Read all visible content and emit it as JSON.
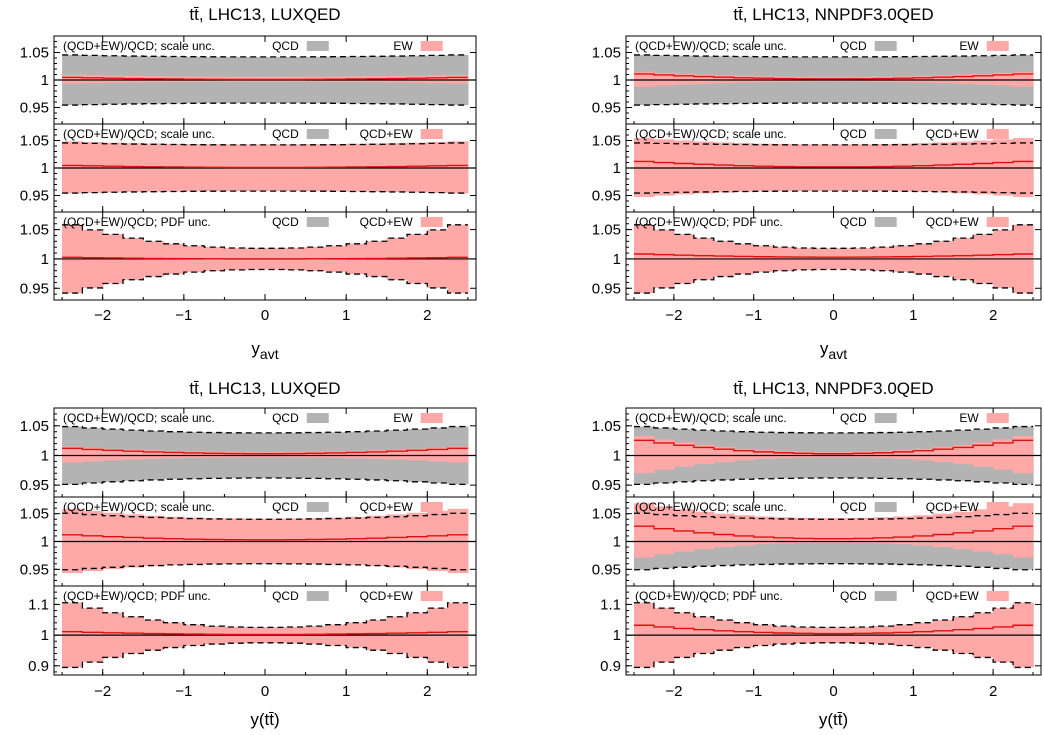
{
  "colors": {
    "qcd_band": "#b3b3b3",
    "ew_band": "#ffa8a8",
    "ew_line": "#e01010",
    "frame": "#000000"
  },
  "chart_data": [
    {
      "type": "area",
      "title": "tt̄, LHC13, LUXQED",
      "xlabel_main": "y",
      "xlabel_sub": "avt",
      "xlim": [
        -2.6,
        2.6
      ],
      "xticks": [
        "−2",
        "−1",
        "0",
        "1",
        "2"
      ],
      "xtick_values": [
        -2,
        -1,
        0,
        1,
        2
      ],
      "bins": [
        -2.5,
        -2.25,
        -2.0,
        -1.75,
        -1.5,
        -1.25,
        -1.0,
        -0.75,
        -0.5,
        -0.25,
        0.0,
        0.25,
        0.5,
        0.75,
        1.0,
        1.25,
        1.5,
        1.75,
        2.0,
        2.25,
        2.5
      ],
      "panels": [
        {
          "legend_text": "(QCD+EW)/QCD; scale unc.",
          "legend_a": "QCD",
          "legend_b": "EW",
          "ylim": [
            0.92,
            1.08
          ],
          "yticks": [
            "1.05",
            "1",
            "0.95"
          ],
          "ytick_values": [
            1.05,
            1,
            0.95
          ],
          "bands": [
            {
              "name": "QCD",
              "color": "qcd",
              "upper": 1.042,
              "lower": 0.958,
              "edge": 0.004
            },
            {
              "name": "EW",
              "color": "ew",
              "upper": 1.006,
              "lower": 0.997,
              "edge": 0.004
            }
          ],
          "line": {
            "center": 1.001,
            "edge": 0.004
          }
        },
        {
          "legend_text": "(QCD+EW)/QCD; scale unc.",
          "legend_a": "QCD",
          "legend_b": "QCD+EW",
          "ylim": [
            0.92,
            1.08
          ],
          "yticks": [
            "1.05",
            "1",
            "0.95"
          ],
          "ytick_values": [
            1.05,
            1,
            0.95
          ],
          "bands": [
            {
              "name": "QCD",
              "color": "qcd",
              "upper": 1.042,
              "lower": 0.958,
              "edge": 0.004
            },
            {
              "name": "QCD+EW",
              "color": "ew",
              "upper": 1.043,
              "lower": 0.959,
              "edge": 0.006
            }
          ],
          "line": {
            "center": 1.001,
            "edge": 0.004
          }
        },
        {
          "legend_text": "(QCD+EW)/QCD; PDF unc.",
          "legend_a": "QCD",
          "legend_b": "QCD+EW",
          "ylim": [
            0.93,
            1.08
          ],
          "yticks": [
            "1.05",
            "1",
            "0.95"
          ],
          "ytick_values": [
            1.05,
            1,
            0.95
          ],
          "bands": [
            {
              "name": "QCD",
              "color": "qcd",
              "upper": 1.018,
              "lower": 0.982,
              "edge": 0.045
            },
            {
              "name": "QCD+EW",
              "color": "ew",
              "upper": 1.018,
              "lower": 0.982,
              "edge": 0.045
            }
          ],
          "line": {
            "center": 1.0,
            "edge": 0.003
          }
        }
      ]
    },
    {
      "type": "area",
      "title": "tt̄, LHC13, NNPDF3.0QED",
      "xlabel_main": "y",
      "xlabel_sub": "avt",
      "xlim": [
        -2.6,
        2.6
      ],
      "xticks": [
        "−2",
        "−1",
        "0",
        "1",
        "2"
      ],
      "xtick_values": [
        -2,
        -1,
        0,
        1,
        2
      ],
      "bins": [
        -2.5,
        -2.25,
        -2.0,
        -1.75,
        -1.5,
        -1.25,
        -1.0,
        -0.75,
        -0.5,
        -0.25,
        0.0,
        0.25,
        0.5,
        0.75,
        1.0,
        1.25,
        1.5,
        1.75,
        2.0,
        2.25,
        2.5
      ],
      "panels": [
        {
          "legend_text": "(QCD+EW)/QCD; scale unc.",
          "legend_a": "QCD",
          "legend_b": "EW",
          "ylim": [
            0.92,
            1.08
          ],
          "yticks": [
            "1.05",
            "1",
            "0.95"
          ],
          "ytick_values": [
            1.05,
            1,
            0.95
          ],
          "bands": [
            {
              "name": "QCD",
              "color": "qcd",
              "upper": 1.042,
              "lower": 0.958,
              "edge": 0.004
            },
            {
              "name": "EW",
              "color": "ew",
              "upper": 1.006,
              "lower": 0.997,
              "edge": 0.01
            }
          ],
          "line": {
            "center": 1.002,
            "edge": 0.01
          }
        },
        {
          "legend_text": "(QCD+EW)/QCD; scale unc.",
          "legend_a": "QCD",
          "legend_b": "QCD+EW",
          "ylim": [
            0.92,
            1.08
          ],
          "yticks": [
            "1.05",
            "1",
            "0.95"
          ],
          "ytick_values": [
            1.05,
            1,
            0.95
          ],
          "bands": [
            {
              "name": "QCD",
              "color": "qcd",
              "upper": 1.042,
              "lower": 0.958,
              "edge": 0.004
            },
            {
              "name": "QCD+EW",
              "color": "ew",
              "upper": 1.043,
              "lower": 0.959,
              "edge": 0.013
            }
          ],
          "line": {
            "center": 1.002,
            "edge": 0.011
          }
        },
        {
          "legend_text": "(QCD+EW)/QCD; PDF unc.",
          "legend_a": "QCD",
          "legend_b": "QCD+EW",
          "ylim": [
            0.93,
            1.08
          ],
          "yticks": [
            "1.05",
            "1",
            "0.95"
          ],
          "ytick_values": [
            1.05,
            1,
            0.95
          ],
          "bands": [
            {
              "name": "QCD",
              "color": "qcd",
              "upper": 1.018,
              "lower": 0.982,
              "edge": 0.045
            },
            {
              "name": "QCD+EW",
              "color": "ew",
              "upper": 1.018,
              "lower": 0.982,
              "edge": 0.045
            }
          ],
          "line": {
            "center": 1.003,
            "edge": 0.006
          }
        }
      ]
    },
    {
      "type": "area",
      "title": "tt̄, LHC13, LUXQED",
      "xlabel_main": "y(tt̄)",
      "xlabel_sub": "",
      "xlim": [
        -2.6,
        2.6
      ],
      "xticks": [
        "−2",
        "−1",
        "0",
        "1",
        "2"
      ],
      "xtick_values": [
        -2,
        -1,
        0,
        1,
        2
      ],
      "bins": [
        -2.5,
        -2.25,
        -2.0,
        -1.75,
        -1.5,
        -1.25,
        -1.0,
        -0.75,
        -0.5,
        -0.25,
        0.0,
        0.25,
        0.5,
        0.75,
        1.0,
        1.25,
        1.5,
        1.75,
        2.0,
        2.25,
        2.5
      ],
      "panels": [
        {
          "legend_text": "(QCD+EW)/QCD; scale unc.",
          "legend_a": "QCD",
          "legend_b": "EW",
          "ylim": [
            0.93,
            1.08
          ],
          "yticks": [
            "1.05",
            "1",
            "0.95"
          ],
          "ytick_values": [
            1.05,
            1,
            0.95
          ],
          "bands": [
            {
              "name": "QCD",
              "color": "qcd",
              "upper": 1.038,
              "lower": 0.962,
              "edge": 0.012
            },
            {
              "name": "EW",
              "color": "ew",
              "upper": 1.006,
              "lower": 0.997,
              "edge": 0.01
            }
          ],
          "line": {
            "center": 1.003,
            "edge": 0.01
          }
        },
        {
          "legend_text": "(QCD+EW)/QCD; scale unc.",
          "legend_a": "QCD",
          "legend_b": "QCD+EW",
          "ylim": [
            0.92,
            1.08
          ],
          "yticks": [
            "1.05",
            "1",
            "0.95"
          ],
          "ytick_values": [
            1.05,
            1,
            0.95
          ],
          "bands": [
            {
              "name": "QCD",
              "color": "qcd",
              "upper": 1.04,
              "lower": 0.96,
              "edge": 0.012
            },
            {
              "name": "QCD+EW",
              "color": "ew",
              "upper": 1.041,
              "lower": 0.961,
              "edge": 0.02
            }
          ],
          "line": {
            "center": 1.003,
            "edge": 0.01
          }
        },
        {
          "legend_text": "(QCD+EW)/QCD; PDF unc.",
          "legend_a": "QCD",
          "legend_b": "QCD+EW",
          "ylim": [
            0.87,
            1.16
          ],
          "yticks": [
            "1.1",
            "1",
            "0.9"
          ],
          "ytick_values": [
            1.1,
            1,
            0.9
          ],
          "bands": [
            {
              "name": "QCD",
              "color": "qcd",
              "upper": 1.025,
              "lower": 0.975,
              "edge": 0.09
            },
            {
              "name": "QCD+EW",
              "color": "ew",
              "upper": 1.025,
              "lower": 0.975,
              "edge": 0.09
            }
          ],
          "line": {
            "center": 1.002,
            "edge": 0.01
          }
        }
      ]
    },
    {
      "type": "area",
      "title": "tt̄, LHC13, NNPDF3.0QED",
      "xlabel_main": "y(tt̄)",
      "xlabel_sub": "",
      "xlim": [
        -2.6,
        2.6
      ],
      "xticks": [
        "−2",
        "−1",
        "0",
        "1",
        "2"
      ],
      "xtick_values": [
        -2,
        -1,
        0,
        1,
        2
      ],
      "bins": [
        -2.5,
        -2.25,
        -2.0,
        -1.75,
        -1.5,
        -1.25,
        -1.0,
        -0.75,
        -0.5,
        -0.25,
        0.0,
        0.25,
        0.5,
        0.75,
        1.0,
        1.25,
        1.5,
        1.75,
        2.0,
        2.25,
        2.5
      ],
      "panels": [
        {
          "legend_text": "(QCD+EW)/QCD; scale unc.",
          "legend_a": "QCD",
          "legend_b": "EW",
          "ylim": [
            0.93,
            1.08
          ],
          "yticks": [
            "1.05",
            "1",
            "0.95"
          ],
          "ytick_values": [
            1.05,
            1,
            0.95
          ],
          "bands": [
            {
              "name": "QCD",
              "color": "qcd",
              "upper": 1.038,
              "lower": 0.962,
              "edge": 0.012
            },
            {
              "name": "EW",
              "color": "ew",
              "upper": 1.006,
              "lower": 0.997,
              "edge": 0.03
            }
          ],
          "line": {
            "center": 1.003,
            "edge": 0.025
          }
        },
        {
          "legend_text": "(QCD+EW)/QCD; scale unc.",
          "legend_a": "QCD",
          "legend_b": "QCD+EW",
          "ylim": [
            0.92,
            1.08
          ],
          "yticks": [
            "1.05",
            "1",
            "0.95"
          ],
          "ytick_values": [
            1.05,
            1,
            0.95
          ],
          "bands": [
            {
              "name": "QCD",
              "color": "qcd",
              "upper": 1.04,
              "lower": 0.96,
              "edge": 0.012
            },
            {
              "name": "QCD+EW",
              "color": "ew",
              "upper": 1.042,
              "lower": 0.998,
              "edge": 0.03
            }
          ],
          "line": {
            "center": 1.005,
            "edge": 0.025
          }
        },
        {
          "legend_text": "(QCD+EW)/QCD; PDF unc.",
          "legend_a": "QCD",
          "legend_b": "QCD+EW",
          "ylim": [
            0.87,
            1.16
          ],
          "yticks": [
            "1.1",
            "1",
            "0.9"
          ],
          "ytick_values": [
            1.1,
            1,
            0.9
          ],
          "bands": [
            {
              "name": "QCD",
              "color": "qcd",
              "upper": 1.025,
              "lower": 0.975,
              "edge": 0.09
            },
            {
              "name": "QCD+EW",
              "color": "ew",
              "upper": 1.025,
              "lower": 0.975,
              "edge": 0.09
            }
          ],
          "line": {
            "center": 1.005,
            "edge": 0.03
          }
        }
      ]
    }
  ]
}
